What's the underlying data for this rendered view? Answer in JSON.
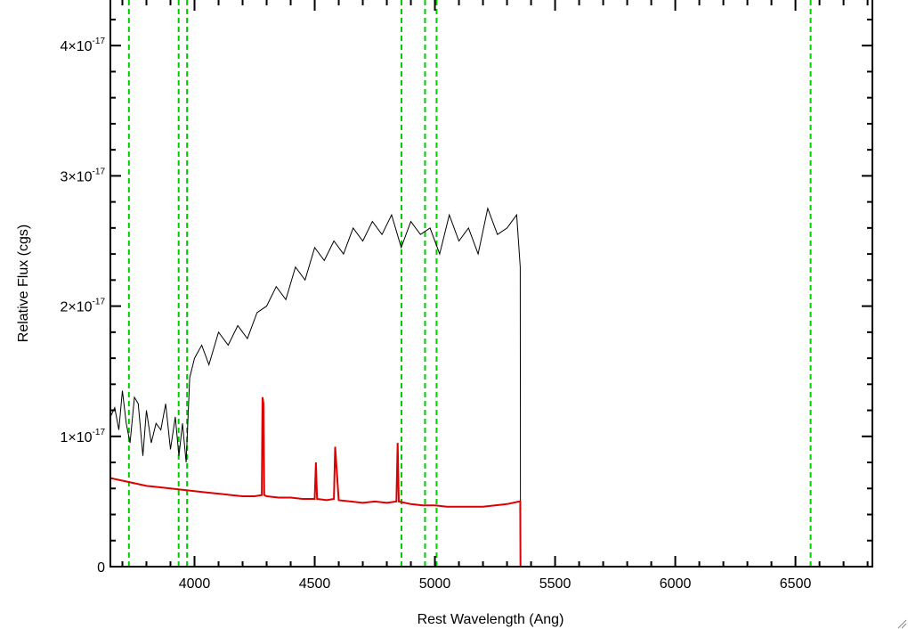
{
  "chart_data": {
    "type": "line",
    "title": "",
    "xlabel": "Rest Wavelength (Ang)",
    "ylabel": "Relative Flux (cgs)",
    "xlim": [
      3650,
      6820
    ],
    "ylim": [
      0,
      4.35e-17
    ],
    "x_ticks": [
      {
        "value": 4000,
        "label": "4000"
      },
      {
        "value": 4500,
        "label": "4500"
      },
      {
        "value": 5000,
        "label": "5000"
      },
      {
        "value": 5500,
        "label": "5500"
      },
      {
        "value": 6000,
        "label": "6000"
      },
      {
        "value": 6500,
        "label": "6500"
      }
    ],
    "y_ticks": [
      {
        "value": 0,
        "mantissa": "0",
        "exponent": ""
      },
      {
        "value": 1e-17,
        "mantissa": "1×10",
        "exponent": "-17"
      },
      {
        "value": 2e-17,
        "mantissa": "2×10",
        "exponent": "-17"
      },
      {
        "value": 3e-17,
        "mantissa": "3×10",
        "exponent": "-17"
      },
      {
        "value": 4e-17,
        "mantissa": "4×10",
        "exponent": "-17"
      }
    ],
    "x_minor_step": 100,
    "y_minor_step": 2e-18,
    "grid": false,
    "colors": {
      "observed": "#000000",
      "model": "#dd0000",
      "marker": "#00cc00",
      "axis": "#000000"
    },
    "vertical_markers": [
      3727,
      3934,
      3969,
      4861,
      4959,
      5007,
      6563
    ],
    "series": [
      {
        "color": "#000000",
        "x": [
          3650,
          3668,
          3685,
          3700,
          3716,
          3732,
          3750,
          3766,
          3785,
          3800,
          3820,
          3840,
          3860,
          3880,
          3900,
          3920,
          3935,
          3950,
          3965,
          3980,
          4000,
          4030,
          4060,
          4100,
          4140,
          4180,
          4220,
          4260,
          4300,
          4340,
          4380,
          4420,
          4460,
          4500,
          4540,
          4580,
          4620,
          4660,
          4700,
          4740,
          4780,
          4820,
          4860,
          4900,
          4940,
          4980,
          5020,
          5060,
          5100,
          5140,
          5180,
          5220,
          5260,
          5300,
          5340,
          5355,
          5356,
          5400,
          5600,
          5800,
          6000,
          6200,
          6400,
          6600,
          6820
        ],
        "y": [
          1.15e-17,
          1.22e-17,
          1.05e-17,
          1.35e-17,
          1.1e-17,
          9.5e-18,
          1.3e-17,
          1.25e-17,
          8.5e-18,
          1.2e-17,
          9.5e-18,
          1.1e-17,
          1.05e-17,
          1.25e-17,
          9e-18,
          1.15e-17,
          8.5e-18,
          1.1e-17,
          8e-18,
          1.45e-17,
          1.6e-17,
          1.7e-17,
          1.55e-17,
          1.8e-17,
          1.7e-17,
          1.85e-17,
          1.75e-17,
          1.95e-17,
          2e-17,
          2.15e-17,
          2.05e-17,
          2.3e-17,
          2.2e-17,
          2.45e-17,
          2.35e-17,
          2.5e-17,
          2.4e-17,
          2.6e-17,
          2.5e-17,
          2.65e-17,
          2.55e-17,
          2.7e-17,
          2.45e-17,
          2.65e-17,
          2.55e-17,
          2.6e-17,
          2.4e-17,
          2.7e-17,
          2.5e-17,
          2.6e-17,
          2.4e-17,
          2.75e-17,
          2.55e-17,
          2.6e-17,
          2.7e-17,
          2.3e-17,
          0,
          0,
          0,
          0,
          0,
          0,
          0,
          0,
          0
        ]
      },
      {
        "color": "#dd0000",
        "x": [
          3650,
          3700,
          3750,
          3800,
          3850,
          3900,
          3950,
          4000,
          4050,
          4100,
          4150,
          4200,
          4250,
          4280,
          4283,
          4287,
          4290,
          4300,
          4350,
          4400,
          4450,
          4500,
          4505,
          4510,
          4550,
          4580,
          4585,
          4600,
          4650,
          4700,
          4750,
          4800,
          4840,
          4845,
          4850,
          4900,
          4950,
          5000,
          5050,
          5100,
          5150,
          5200,
          5250,
          5300,
          5350,
          5355,
          5356,
          5400,
          5600,
          5800,
          6000,
          6200,
          6400,
          6600,
          6820
        ],
        "y": [
          6.8e-18,
          6.6e-18,
          6.4e-18,
          6.2e-18,
          6.1e-18,
          6e-18,
          5.9e-18,
          5.8e-18,
          5.7e-18,
          5.6e-18,
          5.5e-18,
          5.4e-18,
          5.4e-18,
          5.5e-18,
          1.3e-17,
          1.25e-17,
          5.5e-18,
          5.4e-18,
          5.3e-18,
          5.3e-18,
          5.2e-18,
          5.2e-18,
          8e-18,
          5.2e-18,
          5.1e-18,
          5.2e-18,
          9.2e-18,
          5.1e-18,
          5e-18,
          4.9e-18,
          5e-18,
          4.9e-18,
          5e-18,
          9.5e-18,
          5e-18,
          4.8e-18,
          4.7e-18,
          4.7e-18,
          4.6e-18,
          4.6e-18,
          4.6e-18,
          4.6e-18,
          4.7e-18,
          4.8e-18,
          5e-18,
          5e-18,
          0,
          0,
          0,
          0,
          0,
          0,
          0,
          0,
          0
        ]
      }
    ]
  }
}
